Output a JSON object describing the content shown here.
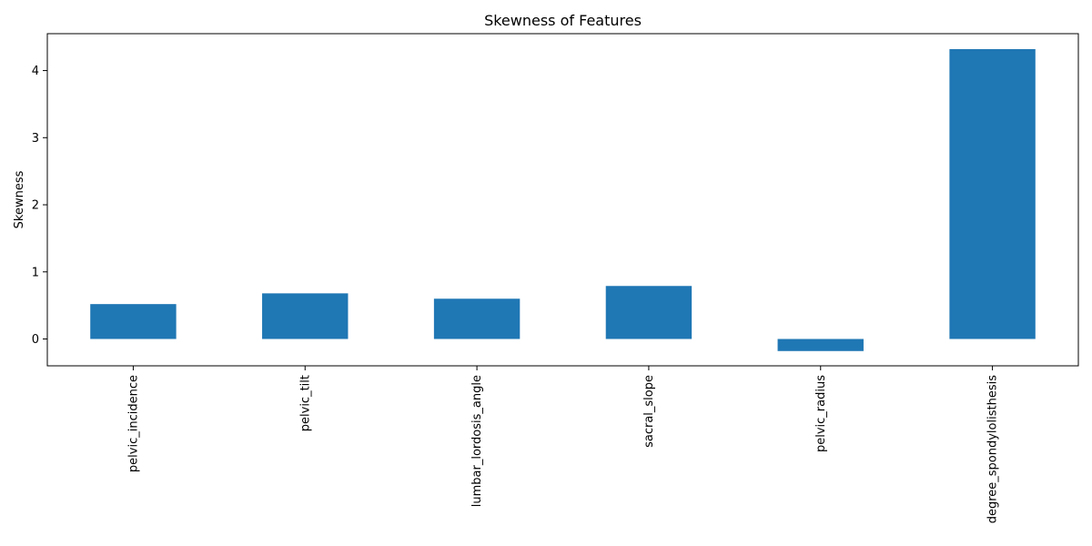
{
  "chart_data": {
    "type": "bar",
    "title": "Skewness of Features",
    "xlabel": "",
    "ylabel": "Skewness",
    "categories": [
      "pelvic_incidence",
      "pelvic_tilt",
      "lumbar_lordosis_angle",
      "sacral_slope",
      "pelvic_radius",
      "degree_spondylolisthesis"
    ],
    "values": [
      0.52,
      0.68,
      0.6,
      0.79,
      -0.18,
      4.32
    ],
    "ylim": [
      -0.4,
      4.55
    ],
    "yticks": [
      0,
      1,
      2,
      3,
      4
    ],
    "bar_color": "#1f77b4",
    "grid": false,
    "legend": "none"
  }
}
